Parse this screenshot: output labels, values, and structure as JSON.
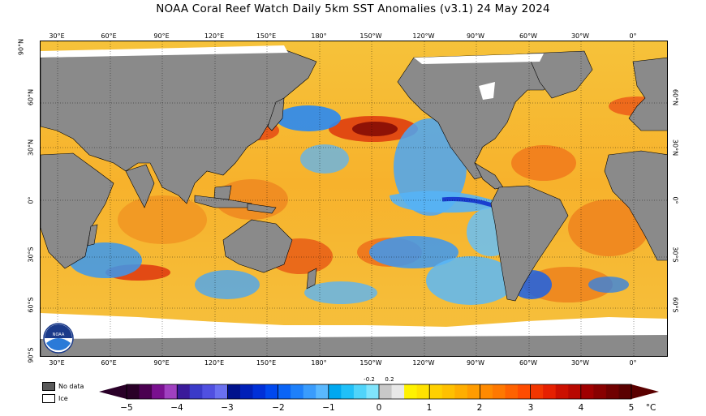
{
  "title": "NOAA Coral Reef Watch Daily 5km SST Anomalies  (v3.1)   24 May 2024",
  "map": {
    "lon_labels": [
      "30°E",
      "60°E",
      "90°E",
      "120°E",
      "150°E",
      "180°",
      "150°W",
      "120°W",
      "90°W",
      "60°W",
      "30°W",
      "0°"
    ],
    "lat_labels_left": [
      "90°N",
      "60°N",
      "30°N",
      "0°",
      "30°S",
      "60°S",
      "90°S"
    ],
    "lat_labels_right": [
      "60°N",
      "30°N",
      "0°",
      "30°S",
      "60°S"
    ],
    "logo_text": "NOAA"
  },
  "legend": {
    "no_data_label": "No data",
    "no_data_color": "#5a5a5a",
    "ice_label": "Ice",
    "ice_color": "#ffffff"
  },
  "colorbar": {
    "unit": "°C",
    "ticks": [
      "−5",
      "−4",
      "−3",
      "−2",
      "−1",
      "0",
      "1",
      "2",
      "3",
      "4",
      "5"
    ],
    "small_ticks": [
      "-0.2",
      "0.2"
    ],
    "range": [
      -5,
      5
    ],
    "bands": [
      "#2a0028",
      "#4a0050",
      "#7a1090",
      "#a040c0",
      "#3a1a9a",
      "#3a3ac8",
      "#5050e0",
      "#6a70f0",
      "#00128c",
      "#0020b8",
      "#0030d8",
      "#0048ee",
      "#0a64f6",
      "#1e80fa",
      "#3a9cfc",
      "#5ab8fe",
      "#00a8f0",
      "#20c0f8",
      "#50d4fa",
      "#80e4fc",
      "#c8c8c8",
      "#e8e8e8",
      "#fff200",
      "#ffe200",
      "#ffd000",
      "#ffc000",
      "#ffae00",
      "#ff9c00",
      "#ff8a00",
      "#ff7800",
      "#ff6200",
      "#ff4c00",
      "#f23600",
      "#e62000",
      "#cc1000",
      "#b80800",
      "#a00000",
      "#880000",
      "#700000",
      "#5a0000"
    ]
  }
}
